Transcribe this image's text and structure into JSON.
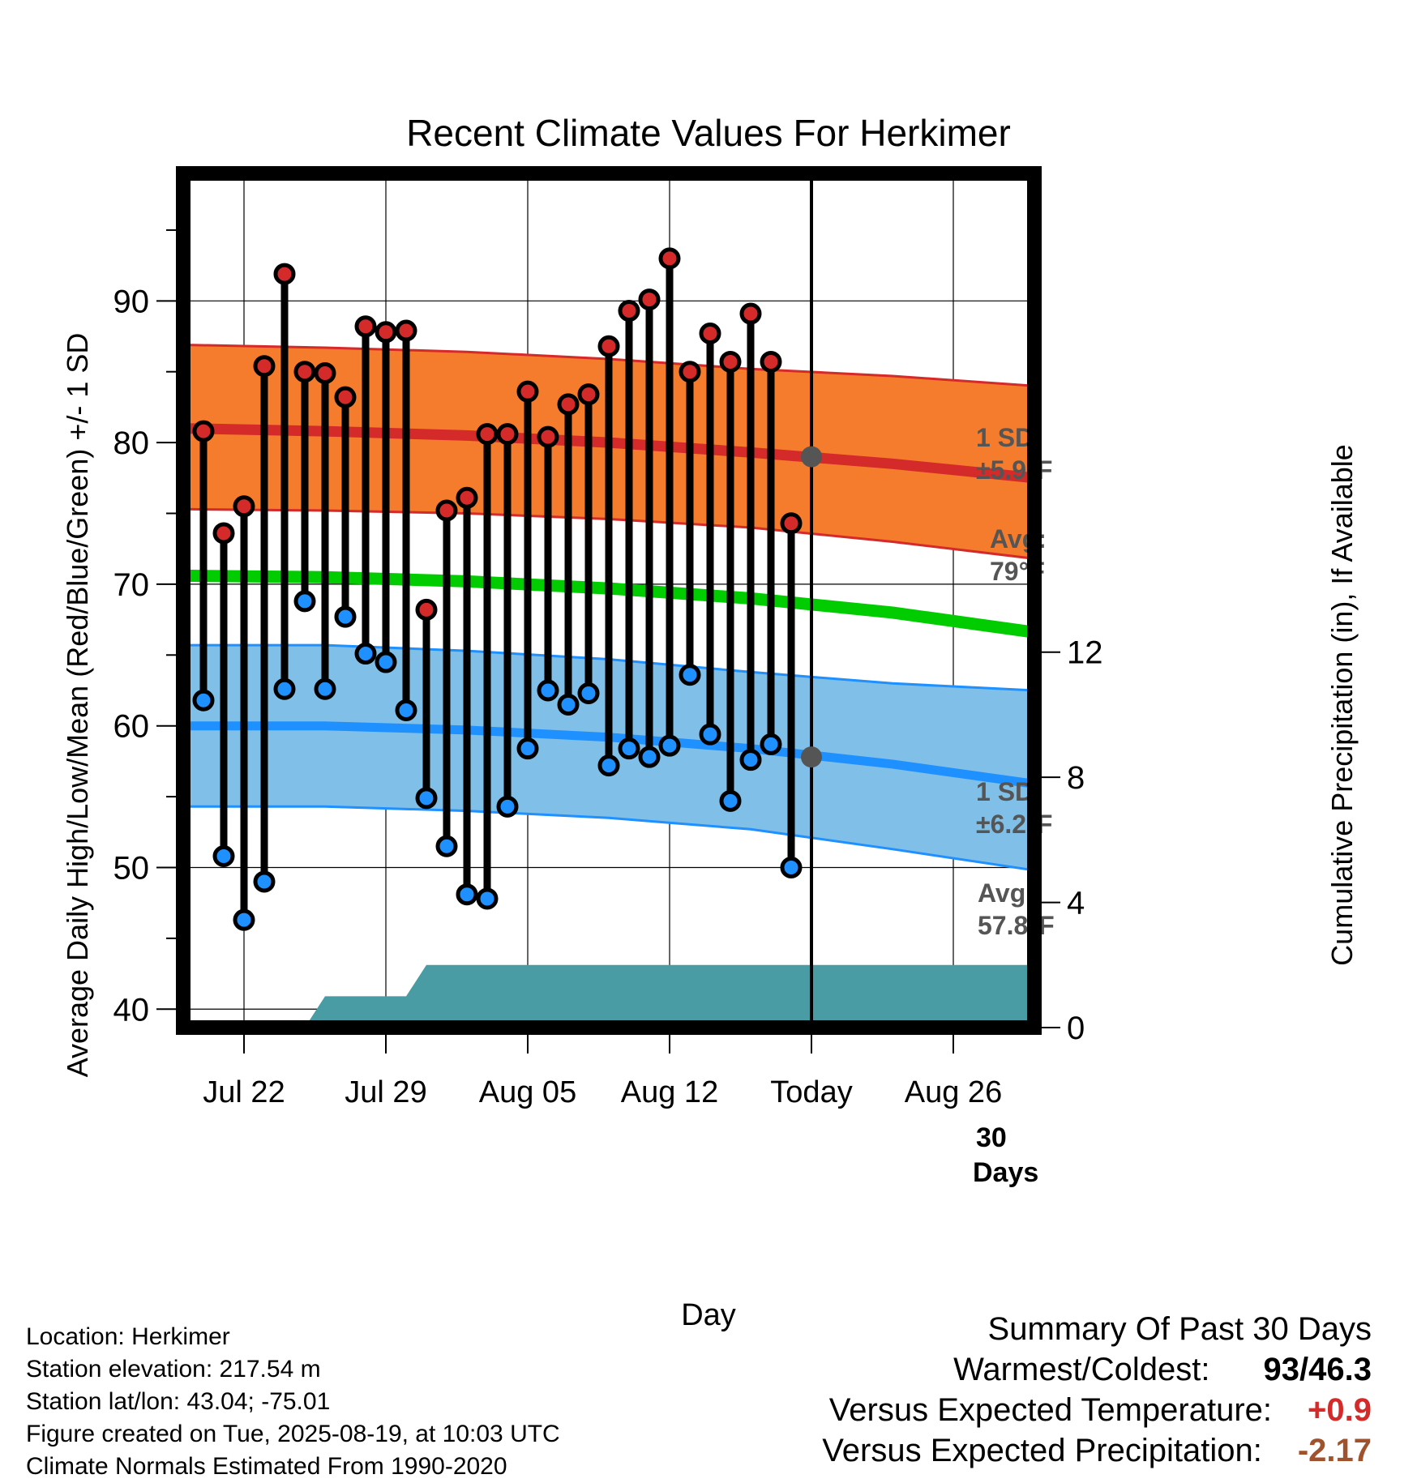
{
  "chart_data": {
    "type": "line",
    "title": "Recent Climate Values For Herkimer",
    "xlabel": "Day",
    "ylabel": "Average Daily High/Low/Mean (Red/Blue/Green) +/- 1 SD",
    "y2label": "Cumulative Precipitation (in), If Available",
    "ylim": [
      38.7,
      99
    ],
    "y2lim": [
      0,
      27.3
    ],
    "xlim": [
      "2025-07-19",
      "2025-08-30"
    ],
    "x_ticks": [
      {
        "date": "2025-07-22",
        "label": "Jul 22"
      },
      {
        "date": "2025-07-29",
        "label": "Jul 29"
      },
      {
        "date": "2025-08-05",
        "label": "Aug 05"
      },
      {
        "date": "2025-08-12",
        "label": "Aug 12"
      },
      {
        "date": "2025-08-19",
        "label": "Today"
      },
      {
        "date": "2025-08-26",
        "label": "Aug 26"
      }
    ],
    "y_ticks": [
      40,
      50,
      60,
      70,
      80,
      90
    ],
    "y2_ticks": [
      0,
      4,
      8,
      12
    ],
    "today": "2025-08-19",
    "days": [
      "2025-07-20",
      "2025-07-21",
      "2025-07-22",
      "2025-07-23",
      "2025-07-24",
      "2025-07-25",
      "2025-07-26",
      "2025-07-27",
      "2025-07-28",
      "2025-07-29",
      "2025-07-30",
      "2025-07-31",
      "2025-08-01",
      "2025-08-02",
      "2025-08-03",
      "2025-08-04",
      "2025-08-05",
      "2025-08-06",
      "2025-08-07",
      "2025-08-08",
      "2025-08-09",
      "2025-08-10",
      "2025-08-11",
      "2025-08-12",
      "2025-08-13",
      "2025-08-14",
      "2025-08-15",
      "2025-08-16",
      "2025-08-17",
      "2025-08-18"
    ],
    "series": [
      {
        "name": "High",
        "color": "#d42a2a",
        "values": [
          80.8,
          73.6,
          75.5,
          85.4,
          91.9,
          85.0,
          84.9,
          83.2,
          88.2,
          87.8,
          87.9,
          68.2,
          75.2,
          76.1,
          80.6,
          80.6,
          83.6,
          80.4,
          82.7,
          83.4,
          86.8,
          89.3,
          90.1,
          93.0,
          85.0,
          87.7,
          85.7,
          89.1,
          85.7,
          74.3
        ]
      },
      {
        "name": "Low",
        "color": "#1e90ff",
        "values": [
          61.8,
          50.8,
          46.3,
          49.0,
          62.6,
          68.8,
          62.6,
          67.7,
          65.1,
          64.5,
          61.1,
          54.9,
          51.5,
          48.1,
          47.8,
          54.3,
          58.4,
          62.5,
          61.5,
          62.3,
          57.2,
          58.4,
          57.8,
          58.6,
          63.6,
          59.4,
          54.7,
          57.6,
          58.7,
          50.0
        ]
      }
    ],
    "normals": {
      "dates": [
        "2025-07-19",
        "2025-07-26",
        "2025-08-02",
        "2025-08-09",
        "2025-08-16",
        "2025-08-23",
        "2025-08-30"
      ],
      "high_avg": [
        81.0,
        80.8,
        80.5,
        80.0,
        79.3,
        78.5,
        77.5
      ],
      "high_sd_upper": [
        86.9,
        86.7,
        86.4,
        85.9,
        85.2,
        84.7,
        84.0
      ],
      "high_sd_lower": [
        75.3,
        75.2,
        75.0,
        74.6,
        74.0,
        73.0,
        71.8
      ],
      "mean_avg": [
        70.6,
        70.5,
        70.2,
        69.7,
        69.0,
        68.0,
        66.6
      ],
      "low_avg": [
        60.0,
        60.0,
        59.7,
        59.2,
        58.4,
        57.3,
        55.9
      ],
      "low_sd_upper": [
        65.7,
        65.7,
        65.3,
        64.7,
        63.8,
        63.0,
        62.5
      ],
      "low_sd_lower": [
        54.3,
        54.3,
        54.0,
        53.5,
        52.7,
        51.3,
        49.8
      ]
    },
    "precip_cumulative": {
      "dates": [
        "2025-07-19",
        "2025-07-25",
        "2025-07-26",
        "2025-07-30",
        "2025-07-31",
        "2025-08-30"
      ],
      "values": [
        0,
        0,
        1.0,
        1.0,
        2.0,
        2.0
      ]
    },
    "today_markers": {
      "high_avg": 79,
      "low_avg": 57.8
    },
    "annotations": {
      "high_sd_label": "1 SD:",
      "high_sd_value": "±5.9°F",
      "high_avg_label": "Avg:",
      "high_avg_value": "79°F",
      "low_sd_label": "1 SD:",
      "low_sd_value": "±6.2°F",
      "low_avg_label": "Avg:",
      "low_avg_value": "57.8°F",
      "days_count": "30",
      "days_word": "Days"
    },
    "colors": {
      "high_band": "#f47c2c",
      "high_line": "#d42a2a",
      "low_band": "#7fbfe8",
      "low_line": "#1e90ff",
      "mean_line": "#00cc00",
      "precip": "#4a9ca4",
      "annotation": "#555555"
    }
  },
  "info": {
    "location": "Location: Herkimer",
    "elevation": "Station elevation: 217.54 m",
    "latlon": "Station lat/lon: 43.04; -75.01",
    "created": "Figure created on Tue, 2025-08-19, at 10:03 UTC",
    "normals": "Climate Normals Estimated From 1990-2020"
  },
  "summary": {
    "title": "Summary Of Past 30 Days",
    "warmest_coldest_label": "Warmest/Coldest:",
    "warmest": "93",
    "coldest": "/46.3",
    "temp_label": "Versus Expected Temperature:",
    "temp_value": "+0.9",
    "temp_color": "#d42a2a",
    "precip_label": "Versus Expected Precipitation:",
    "precip_value": "-2.17",
    "precip_color": "#a0522d"
  }
}
